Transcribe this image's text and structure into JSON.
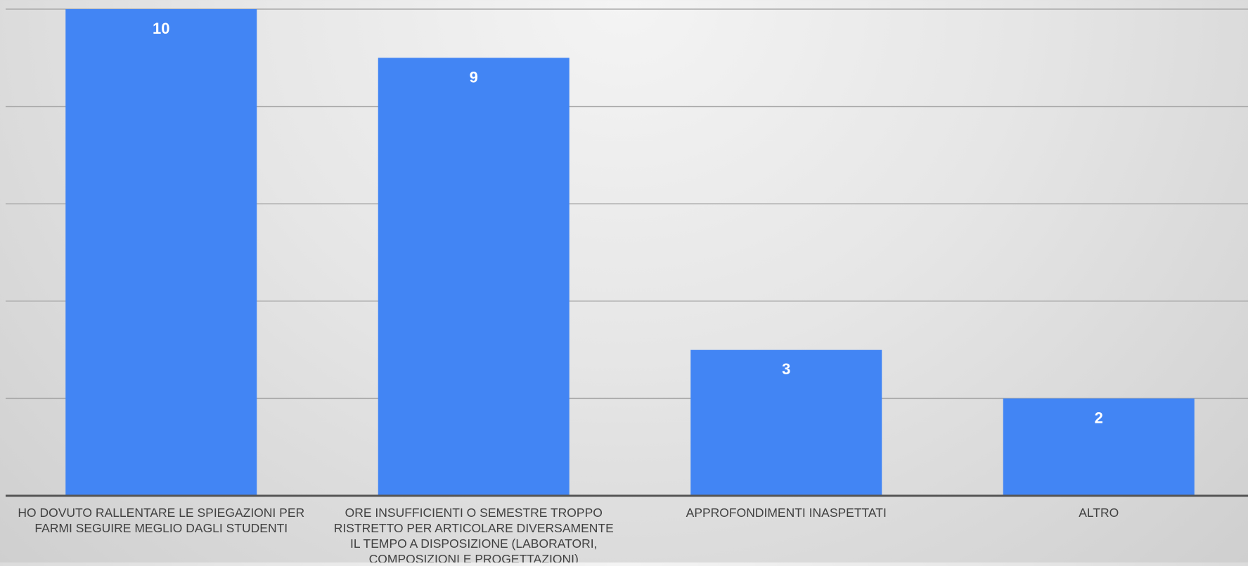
{
  "colors": {
    "bar": "#4285f4",
    "grid": "#a9a9a9",
    "axis": "#555555",
    "value_label": "#ffffff",
    "category_label": "#404040"
  },
  "chart_data": {
    "type": "bar",
    "categories": [
      "HO DOVUTO RALLENTARE LE SPIEGAZIONI PER FARMI SEGUIRE MEGLIO DAGLI STUDENTI",
      "ORE INSUFFICIENTI O SEMESTRE TROPPO RISTRETTO PER ARTICOLARE DIVERSAMENTE IL TEMPO A DISPOSIZIONE (LABORATORI, COMPOSIZIONI E PROGETTAZIONI)",
      "APPROFONDIMENTI INASPETTATI",
      "ALTRO"
    ],
    "category_lines": [
      [
        "HO DOVUTO RALLENTARE LE SPIEGAZIONI PER",
        "FARMI SEGUIRE MEGLIO DAGLI STUDENTI"
      ],
      [
        "ORE INSUFFICIENTI O SEMESTRE TROPPO",
        "RISTRETTO PER ARTICOLARE DIVERSAMENTE",
        "IL TEMPO A DISPOSIZIONE (LABORATORI,",
        "COMPOSIZIONI E PROGETTAZIONI)"
      ],
      [
        "APPROFONDIMENTI INASPETTATI"
      ],
      [
        "ALTRO"
      ]
    ],
    "values": [
      10,
      9,
      3,
      2
    ],
    "data_labels": [
      "10",
      "9",
      "3",
      "2"
    ],
    "ylim": [
      0,
      10
    ],
    "gridlines": [
      0,
      2,
      4,
      6,
      8,
      10
    ],
    "grid": true,
    "legend": "none",
    "title": "",
    "xlabel": "",
    "ylabel": ""
  }
}
